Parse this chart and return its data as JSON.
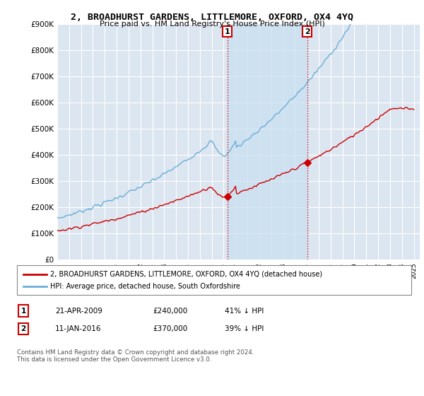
{
  "title": "2, BROADHURST GARDENS, LITTLEMORE, OXFORD, OX4 4YQ",
  "subtitle": "Price paid vs. HM Land Registry's House Price Index (HPI)",
  "ylabel_ticks": [
    "£0",
    "£100K",
    "£200K",
    "£300K",
    "£400K",
    "£500K",
    "£600K",
    "£700K",
    "£800K",
    "£900K"
  ],
  "ylim": [
    0,
    900000
  ],
  "xlim_start": 1995.0,
  "xlim_end": 2025.5,
  "hpi_color": "#6baed6",
  "price_color": "#cc0000",
  "sale1_date": 2009.3,
  "sale1_price": 240000,
  "sale2_date": 2016.03,
  "sale2_price": 370000,
  "legend_label_red": "2, BROADHURST GARDENS, LITTLEMORE, OXFORD, OX4 4YQ (detached house)",
  "legend_label_blue": "HPI: Average price, detached house, South Oxfordshire",
  "table_row1": [
    "1",
    "21-APR-2009",
    "£240,000",
    "41% ↓ HPI"
  ],
  "table_row2": [
    "2",
    "11-JAN-2016",
    "£370,000",
    "39% ↓ HPI"
  ],
  "footnote": "Contains HM Land Registry data © Crown copyright and database right 2024.\nThis data is licensed under the Open Government Licence v3.0.",
  "background_color": "#ffffff",
  "plot_bg_color": "#dce6f1",
  "grid_color": "#ffffff",
  "shade_color": "#c9dff0"
}
